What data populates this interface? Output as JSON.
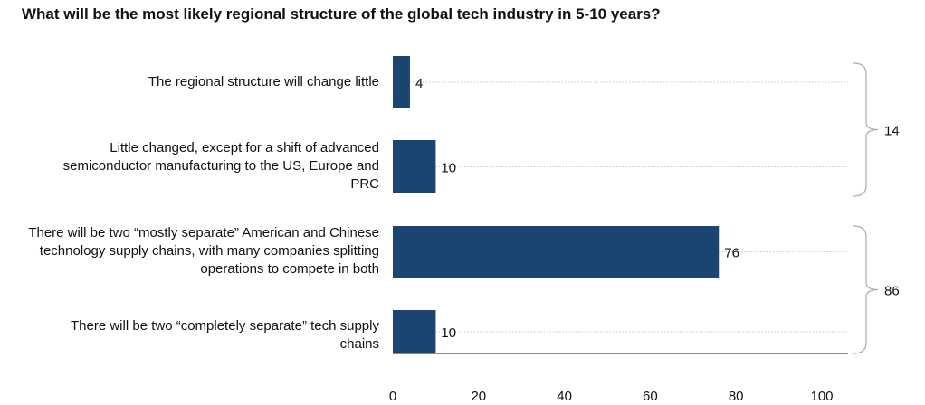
{
  "chart_data": {
    "type": "bar",
    "orientation": "horizontal",
    "title": "What will be the most likely regional structure of the global tech industry in 5-10 years?",
    "categories": [
      "The regional structure will change little",
      "Little changed, except for a shift of advanced semiconductor manufacturing to the US, Europe and PRC",
      "There will be two “mostly separate” American and Chinese technology supply chains, with many companies splitting operations to compete in both",
      "There will be two “completely separate” tech supply chains"
    ],
    "values": [
      4,
      10,
      76,
      10
    ],
    "data_labels": [
      "4",
      "10",
      "76",
      "10"
    ],
    "xlim": [
      0,
      105
    ],
    "xticks": [
      "0",
      "20",
      "40",
      "60",
      "80",
      "100"
    ],
    "groups": [
      {
        "label": "14",
        "members": [
          0,
          1
        ]
      },
      {
        "label": "86",
        "members": [
          2,
          3
        ]
      }
    ],
    "grid": "dotted horizontal guides",
    "bar_color": "#1b4571"
  }
}
